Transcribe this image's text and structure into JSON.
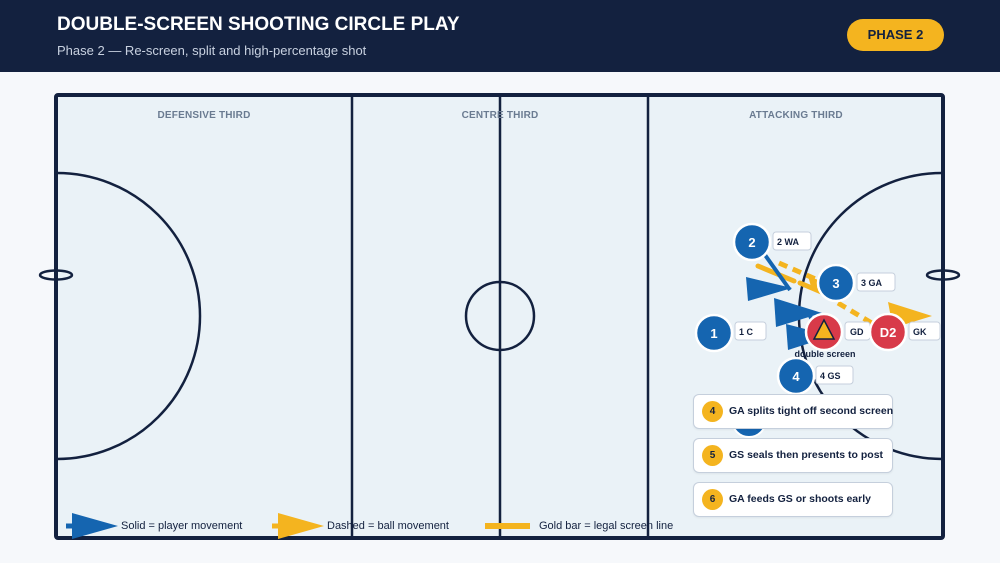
{
  "header": {
    "title": "DOUBLE-SCREEN SHOOTING CIRCLE PLAY",
    "subtitle": "Phase 2 — Re-screen, split and high-percentage shot",
    "phase_badge": "PHASE 2"
  },
  "court": {
    "zones": [
      "DEFENSIVE THIRD",
      "CENTRE THIRD",
      "ATTACKING THIRD"
    ]
  },
  "players": {
    "p2": {
      "number": "2",
      "tag": "2 WA"
    },
    "p3": {
      "number": "3",
      "tag": "3 GA"
    },
    "p1": {
      "number": "1",
      "tag": "1 C"
    },
    "p4": {
      "number": "4",
      "tag": "4 GS"
    },
    "gd": {
      "tag": "GD"
    },
    "d2": {
      "label": "D2",
      "tag": "GK"
    }
  },
  "annotation": {
    "double_screen": "double screen"
  },
  "steps": [
    {
      "num": "4",
      "text": "GA splits tight off second screen"
    },
    {
      "num": "5",
      "text": "GS seals then presents to post"
    },
    {
      "num": "6",
      "text": "GA feeds GS or shoots early"
    }
  ],
  "legend": {
    "solid": "Solid = player movement",
    "dashed": "Dashed = ball movement",
    "gold_bar": "Gold bar = legal screen line"
  },
  "colors": {
    "navy": "#13213f",
    "attack_blue": "#1565b0",
    "defence_red": "#d83a49",
    "gold": "#f4b41f",
    "court_fill": "#eaf2f7"
  },
  "icons": {
    "defender_marker": "warning-triangle-icon"
  }
}
